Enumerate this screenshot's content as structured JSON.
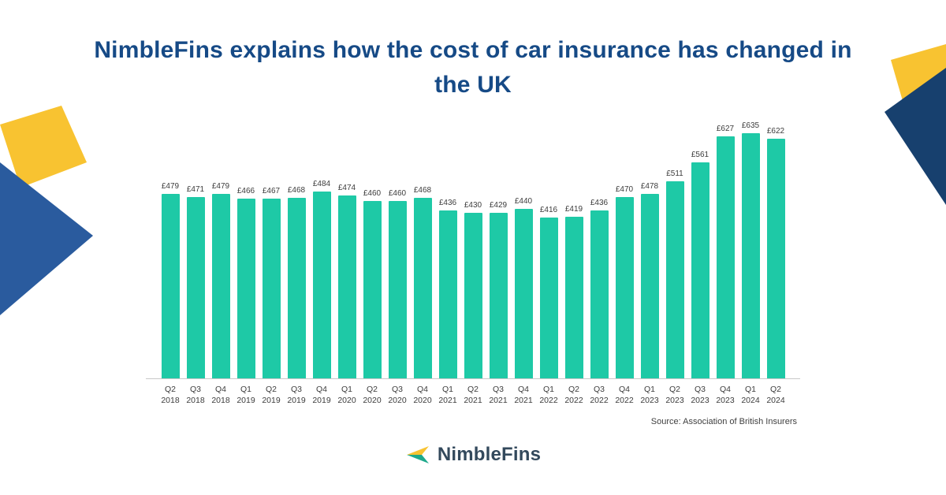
{
  "page": {
    "title": "NimbleFins explains how the cost of car insurance has changed in the UK"
  },
  "chart_data": {
    "type": "bar",
    "title": "NimbleFins explains how the cost of car insurance has changed in the UK",
    "categories": [
      "Q2 2018",
      "Q3 2018",
      "Q4 2018",
      "Q1 2019",
      "Q2 2019",
      "Q3 2019",
      "Q4 2019",
      "Q1 2020",
      "Q2 2020",
      "Q3 2020",
      "Q4 2020",
      "Q1 2021",
      "Q2 2021",
      "Q3 2021",
      "Q4 2021",
      "Q1 2022",
      "Q2 2022",
      "Q3 2022",
      "Q4 2022",
      "Q1 2023",
      "Q2 2023",
      "Q3 2023",
      "Q4 2023",
      "Q1 2024",
      "Q2 2024"
    ],
    "values": [
      479,
      471,
      479,
      466,
      467,
      468,
      484,
      474,
      460,
      460,
      468,
      436,
      430,
      429,
      440,
      416,
      419,
      436,
      470,
      478,
      511,
      561,
      627,
      635,
      622
    ],
    "value_prefix": "£",
    "xlabel": "",
    "ylabel": "",
    "ylim": [
      0,
      650
    ],
    "grid": false,
    "legend": "none",
    "bar_color": "#1ec9a6",
    "source": "Source: Association of British Insurers"
  },
  "footer": {
    "logo_text": "NimbleFins"
  },
  "colors": {
    "title_blue": "#164a86",
    "bar_teal": "#1ec9a6",
    "accent_yellow": "#f8c331",
    "accent_blue_left": "#2a5b9e",
    "accent_blue_right": "#17406e",
    "logo_dark": "#33495c",
    "logo_teal": "#1ea98c"
  }
}
